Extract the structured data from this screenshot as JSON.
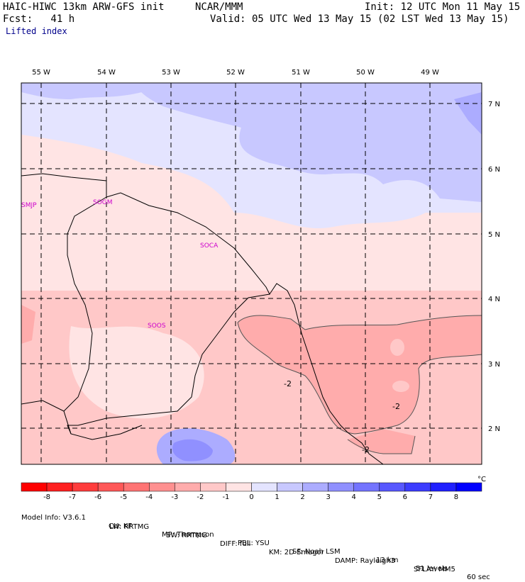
{
  "header": {
    "model": "HAIC-HIWC 13km ARW-GFS init",
    "org": "NCAR/MMM",
    "init": "Init: 12 UTC Mon 11 May 15",
    "fcst": "Fcst:   41 h",
    "valid": "Valid: 05 UTC Wed 13 May 15 (02 LST Wed 13 May 15)",
    "field": "Lifted index"
  },
  "map": {
    "lon_labels": [
      "55 W",
      "54 W",
      "53 W",
      "52 W",
      "51 W",
      "50 W",
      "49 W"
    ],
    "lat_labels": [
      "7 N",
      "6 N",
      "5 N",
      "4 N",
      "3 N",
      "2 N"
    ],
    "stations": [
      "SMJP",
      "SOGM",
      "SOCA",
      "SOOS"
    ],
    "contour_labels": [
      "-2",
      "-2",
      "-2"
    ]
  },
  "colorbar": {
    "ticks": [
      "-8",
      "-7",
      "-6",
      "-5",
      "-4",
      "-3",
      "-2",
      "-1",
      "0",
      "1",
      "2",
      "3",
      "4",
      "5",
      "6",
      "7",
      "8"
    ],
    "unit": "°C",
    "colors": [
      "#ff0000",
      "#ff2020",
      "#ff3c3c",
      "#ff5858",
      "#ff7474",
      "#ff9090",
      "#ffacac",
      "#ffc8c8",
      "#ffe4e4",
      "#e4e4ff",
      "#c8c8ff",
      "#acacff",
      "#9090ff",
      "#7474ff",
      "#5858ff",
      "#3c3cff",
      "#2020ff",
      "#0000ff"
    ]
  },
  "footer": {
    "line1": [
      "Model Info: V3.6.1",
      "CU: KF",
      "MP: Thompson",
      "PBL: YSU",
      "SF: Noah LSM",
      "13 km",
      "51 levels",
      "60 sec"
    ],
    "line2": [
      "LW: RRTMG",
      "SW: RRTMG",
      "DIFF: full",
      "KM: 2D Smagor",
      "DAMP: Rayleigh3",
      "SFLAY: MM5"
    ]
  }
}
